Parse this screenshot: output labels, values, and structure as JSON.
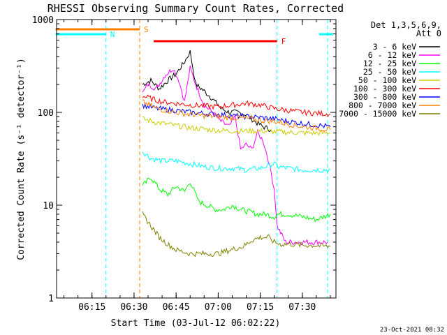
{
  "chart_data": {
    "type": "line",
    "title": "RHESSI Observing Summary Count Rates, Corrected",
    "xlabel": "Start Time (03-Jul-12 06:02:22)",
    "ylabel": "Corrected Count Rate (s⁻¹ detector⁻¹)",
    "y_scale": "log",
    "ylim": [
      1,
      1000
    ],
    "xlim": [
      "06:02:22",
      "07:42:00"
    ],
    "x_ticks": [
      "06:15",
      "06:30",
      "06:45",
      "07:00",
      "07:15",
      "07:30"
    ],
    "y_ticks": [
      "1",
      "10",
      "100",
      "1000"
    ],
    "legend_title": [
      "Det 1,3,5,6,9,",
      "Att 0"
    ],
    "legend_position": "right",
    "timestamp": "23-Oct-2021 08:32",
    "flags": [
      {
        "label": "N",
        "color": "#00ffff",
        "intervals": [
          [
            "06:02",
            "06:20"
          ],
          [
            "07:36",
            "07:41"
          ]
        ]
      },
      {
        "label": "S",
        "color": "#ff8000",
        "intervals": [
          [
            "06:02",
            "06:32"
          ]
        ]
      },
      {
        "label": "F",
        "color": "#ff0000",
        "intervals": [
          [
            "06:37",
            "07:21"
          ]
        ]
      }
    ],
    "night_markers": [
      {
        "time": "06:20",
        "color": "#00ffff"
      },
      {
        "time": "06:32",
        "color": "#ff8000"
      },
      {
        "time": "07:21",
        "color": "#00ffff"
      },
      {
        "time": "07:39",
        "color": "#00ffff"
      }
    ],
    "series": [
      {
        "name": "3 - 6 keV",
        "color": "#000000",
        "x": [
          "06:33",
          "06:36",
          "06:39",
          "06:42",
          "06:45",
          "06:48",
          "06:50",
          "06:52",
          "06:55",
          "06:58",
          "07:01",
          "07:04",
          "07:07",
          "07:10",
          "07:13",
          "07:16",
          "07:19"
        ],
        "y": [
          200,
          220,
          180,
          220,
          260,
          350,
          450,
          200,
          170,
          140,
          110,
          100,
          100,
          95,
          80,
          70,
          65
        ]
      },
      {
        "name": "6 - 12 keV",
        "color": "#ff00ff",
        "x": [
          "06:33",
          "06:35",
          "06:38",
          "06:41",
          "06:44",
          "06:46",
          "06:48",
          "06:50",
          "06:52",
          "06:55",
          "06:58",
          "07:01",
          "07:04",
          "07:06",
          "07:08",
          "07:10",
          "07:12",
          "07:14",
          "07:16",
          "07:18",
          "07:20",
          "07:21",
          "07:24",
          "07:27",
          "07:30",
          "07:33",
          "07:36",
          "07:39"
        ],
        "y": [
          160,
          200,
          180,
          250,
          300,
          220,
          130,
          300,
          200,
          120,
          100,
          80,
          70,
          90,
          40,
          45,
          40,
          60,
          50,
          30,
          15,
          6,
          4,
          4,
          4,
          4,
          4,
          4
        ]
      },
      {
        "name": "12 - 25 keV",
        "color": "#00ff00",
        "x": [
          "06:33",
          "06:36",
          "06:39",
          "06:42",
          "06:45",
          "06:48",
          "06:50",
          "06:53",
          "06:56",
          "06:59",
          "07:02",
          "07:05",
          "07:08",
          "07:11",
          "07:14",
          "07:17",
          "07:20",
          "07:21",
          "07:25",
          "07:30",
          "07:35",
          "07:40"
        ],
        "y": [
          16,
          20,
          15,
          13,
          16,
          14,
          18,
          11,
          10,
          9,
          9,
          10,
          9,
          8.5,
          8,
          8,
          7.5,
          8,
          8,
          7.5,
          7,
          8
        ]
      },
      {
        "name": "25 - 50 keV",
        "color": "#00ffff",
        "x": [
          "06:33",
          "06:36",
          "06:40",
          "06:45",
          "06:50",
          "06:55",
          "07:00",
          "07:05",
          "07:10",
          "07:15",
          "07:20",
          "07:21",
          "07:25",
          "07:30",
          "07:35",
          "07:40"
        ],
        "y": [
          38,
          32,
          30,
          30,
          28,
          26,
          25,
          25,
          24,
          25,
          28,
          26,
          25,
          24,
          24,
          24
        ]
      },
      {
        "name": "50 - 100 keV",
        "color": "#cccc00",
        "x": [
          "06:33",
          "06:38",
          "06:45",
          "06:50",
          "06:55",
          "07:00",
          "07:05",
          "07:10",
          "07:15",
          "07:20",
          "07:25",
          "07:30",
          "07:35",
          "07:40"
        ],
        "y": [
          85,
          78,
          72,
          68,
          66,
          64,
          63,
          63,
          63,
          62,
          61,
          60,
          60,
          60
        ]
      },
      {
        "name": "100 - 300 keV",
        "color": "#ff0000",
        "x": [
          "06:33",
          "06:40",
          "06:50",
          "07:00",
          "07:05",
          "07:10",
          "07:15",
          "07:20",
          "07:25",
          "07:30",
          "07:35",
          "07:40"
        ],
        "y": [
          150,
          130,
          120,
          115,
          120,
          125,
          120,
          110,
          105,
          100,
          98,
          96
        ]
      },
      {
        "name": "300 - 800 keV",
        "color": "#0000ff",
        "x": [
          "06:33",
          "06:38",
          "06:45",
          "06:50",
          "06:55",
          "07:00",
          "07:05",
          "07:10",
          "07:15",
          "07:20",
          "07:25",
          "07:30",
          "07:35",
          "07:40"
        ],
        "y": [
          120,
          110,
          105,
          100,
          97,
          95,
          92,
          90,
          88,
          85,
          80,
          76,
          73,
          70
        ]
      },
      {
        "name": "800 - 7000 keV",
        "color": "#ff8000",
        "x": [
          "06:33",
          "06:38",
          "06:45",
          "06:50",
          "06:55",
          "07:00",
          "07:05",
          "07:10",
          "07:15",
          "07:20",
          "07:25",
          "07:30",
          "07:35",
          "07:40"
        ],
        "y": [
          130,
          110,
          100,
          95,
          92,
          90,
          88,
          86,
          82,
          80,
          75,
          70,
          68,
          65
        ]
      },
      {
        "name": "7000 - 15000 keV",
        "color": "#808000",
        "x": [
          "06:33",
          "06:36",
          "06:39",
          "06:42",
          "06:45",
          "06:50",
          "06:55",
          "07:00",
          "07:03",
          "07:06",
          "07:09",
          "07:12",
          "07:15",
          "07:18",
          "07:20",
          "07:22",
          "07:26",
          "07:30",
          "07:34",
          "07:38",
          "07:40"
        ],
        "y": [
          8,
          6,
          4.5,
          3.8,
          3.3,
          3.0,
          3.0,
          3.0,
          3.2,
          3.4,
          3.6,
          4.2,
          4.5,
          4.5,
          4.0,
          3.8,
          3.8,
          3.7,
          3.7,
          3.6,
          3.6
        ]
      }
    ]
  }
}
